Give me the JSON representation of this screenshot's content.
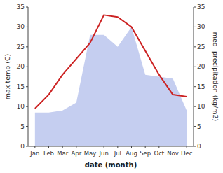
{
  "chart_data": {
    "type": "line",
    "xlabel": "date (month)",
    "ylabel": "max temp (C)",
    "y2label": "med. precipitation (kg/m2)",
    "categories": [
      "Jan",
      "Feb",
      "Mar",
      "Apr",
      "May",
      "Jun",
      "Jul",
      "Aug",
      "Sep",
      "Oct",
      "Nov",
      "Dec"
    ],
    "series": [
      {
        "type": "area",
        "axis": "y2",
        "color": "#c5cef0",
        "values": [
          8.5,
          8.5,
          9.0,
          11.0,
          28.0,
          28.0,
          25.0,
          30.0,
          18.0,
          17.5,
          17.0,
          9.0
        ]
      },
      {
        "type": "line",
        "color": "#cc2222",
        "values": [
          9.5,
          13.0,
          18.0,
          22.0,
          26.0,
          33.0,
          32.5,
          30.0,
          24.0,
          18.0,
          13.0,
          12.5
        ]
      }
    ],
    "ylim": [
      0,
      35
    ],
    "yticks": [
      0,
      5,
      10,
      15,
      20,
      25,
      30,
      35
    ],
    "y2lim": [
      0,
      35
    ],
    "y2ticks": [
      0,
      5,
      10,
      15,
      20,
      25,
      30,
      35
    ],
    "grid": false
  }
}
